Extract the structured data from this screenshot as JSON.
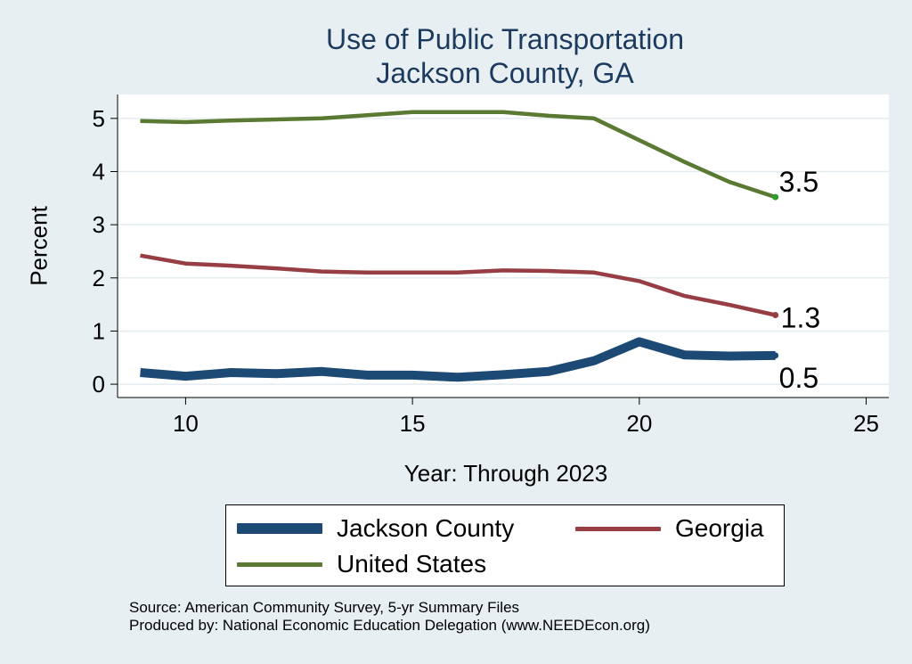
{
  "chart_data": {
    "type": "line",
    "title": "Use of Public Transportation",
    "subtitle": "Jackson County, GA",
    "xlabel": "Year: Through 2023",
    "ylabel": "Percent",
    "xlim": [
      8.5,
      25.5
    ],
    "ylim": [
      -0.25,
      5.45
    ],
    "x_ticks": [
      10,
      15,
      20,
      25
    ],
    "y_ticks": [
      0,
      1,
      2,
      3,
      4,
      5
    ],
    "grid": true,
    "legend_position": "bottom",
    "x": [
      9,
      10,
      11,
      12,
      13,
      14,
      15,
      16,
      17,
      18,
      19,
      20,
      21,
      22,
      23
    ],
    "series": [
      {
        "name": "Jackson County",
        "color": "#1c4a74",
        "line_width": "thick",
        "values": [
          0.22,
          0.15,
          0.22,
          0.2,
          0.24,
          0.17,
          0.17,
          0.13,
          0.18,
          0.24,
          0.44,
          0.8,
          0.55,
          0.53,
          0.54
        ],
        "end_label": "0.5"
      },
      {
        "name": "Georgia",
        "color": "#963e44",
        "line_width": "medium",
        "values": [
          2.42,
          2.27,
          2.23,
          2.18,
          2.12,
          2.1,
          2.1,
          2.1,
          2.14,
          2.13,
          2.1,
          1.94,
          1.66,
          1.49,
          1.3
        ],
        "end_label": "1.3"
      },
      {
        "name": "United States",
        "color": "#5a7a33",
        "line_width": "medium",
        "values": [
          4.95,
          4.93,
          4.96,
          4.98,
          5.0,
          5.06,
          5.12,
          5.12,
          5.12,
          5.05,
          5.0,
          4.59,
          4.18,
          3.8,
          3.52
        ],
        "end_label": "3.5"
      }
    ]
  },
  "source_lines": [
    "Source: American Community Survey, 5-yr Summary Files",
    "Produced by: National Economic Education Delegation (www.NEEDEcon.org)"
  ]
}
